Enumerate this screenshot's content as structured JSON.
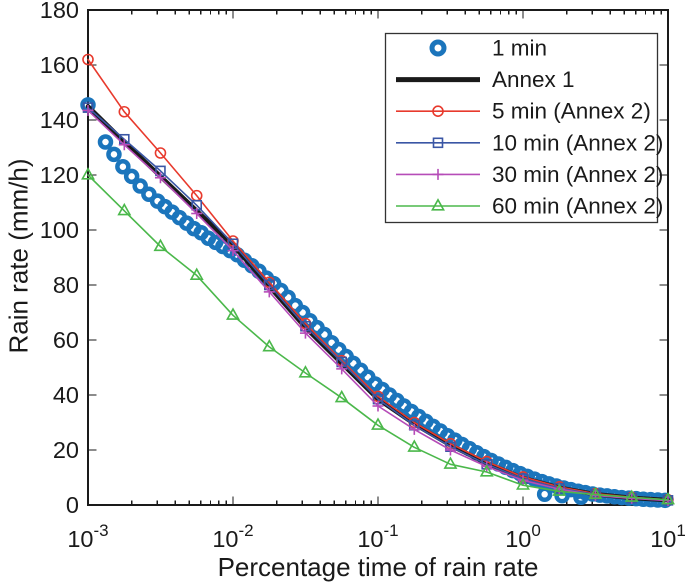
{
  "chart_data": {
    "type": "line",
    "title": "",
    "xlabel": "Percentage time of rain rate",
    "ylabel": "Rain rate (mm/h)",
    "x_scale": "log",
    "grid": false,
    "legend_position": "top-right",
    "xlim": [
      0.001,
      10
    ],
    "ylim": [
      0,
      180
    ],
    "x_ticks": [
      0.001,
      0.01,
      0.1,
      1,
      10
    ],
    "y_ticks": [
      0,
      20,
      40,
      60,
      80,
      100,
      120,
      140,
      160,
      180
    ],
    "colors": {
      "one_min_blue": "#1b75bc",
      "annex1_black": "#1a1a1a",
      "five_min_red": "#e83a2d",
      "ten_min_blue": "#3a56a5",
      "thirty_min_magenta": "#b64cb8",
      "sixty_min_green": "#4bb84b"
    },
    "series": [
      {
        "name": "1 min",
        "style": "scatter",
        "marker": "ring",
        "color": "#1b75bc",
        "marker_size": 5.5,
        "marker_stroke": 4.5,
        "x": [
          0.001,
          0.00132,
          0.00151,
          0.00174,
          0.002,
          0.00229,
          0.00263,
          0.00302,
          0.00339,
          0.0038,
          0.00427,
          0.00479,
          0.00537,
          0.00603,
          0.00676,
          0.00759,
          0.00851,
          0.00955,
          0.0107,
          0.012,
          0.0135,
          0.0151,
          0.017,
          0.0191,
          0.0214,
          0.024,
          0.0269,
          0.0302,
          0.0339,
          0.038,
          0.0427,
          0.0479,
          0.0537,
          0.0603,
          0.0676,
          0.0759,
          0.0851,
          0.0955,
          0.107,
          0.12,
          0.135,
          0.151,
          0.17,
          0.191,
          0.214,
          0.24,
          0.269,
          0.302,
          0.339,
          0.38,
          0.427,
          0.479,
          0.537,
          0.603,
          0.676,
          0.759,
          0.851,
          0.955,
          1.07,
          1.2,
          1.35,
          1.51,
          1.7,
          1.91,
          2.14,
          2.4,
          2.69,
          3.02,
          3.39,
          3.8,
          4.27,
          4.79,
          5.37,
          6.03,
          6.76,
          7.59,
          8.51,
          9.55,
          1.41,
          1.86,
          2.51
        ],
        "y": [
          145.5,
          132,
          127.5,
          123,
          119.5,
          116,
          113,
          110.5,
          108.5,
          106.5,
          104.5,
          102.5,
          100.5,
          99,
          97,
          95.5,
          94,
          92.5,
          91,
          89,
          87,
          85,
          82.5,
          80.5,
          78,
          75.5,
          72.5,
          70,
          67,
          64.5,
          62,
          59,
          56.5,
          54,
          51.5,
          49,
          46.5,
          44,
          42,
          40,
          38,
          36,
          34,
          32.2,
          30.4,
          28.6,
          26.9,
          25.2,
          23.6,
          22,
          20.5,
          19,
          17.6,
          16.2,
          14.9,
          13.7,
          12.5,
          11.4,
          10.4,
          9.4,
          8.5,
          7.7,
          6.9,
          6.2,
          5.6,
          5.0,
          4.5,
          4.0,
          3.6,
          3.3,
          3.0,
          2.7,
          2.5,
          2.3,
          2.1,
          1.95,
          1.8,
          1.7,
          3.9,
          3.4,
          2.8
        ]
      },
      {
        "name": "Annex 1",
        "style": "line",
        "marker": "none",
        "color": "#1a1a1a",
        "line_width": 4.5,
        "x": [
          0.001,
          0.00178,
          0.00316,
          0.00562,
          0.01,
          0.0178,
          0.0316,
          0.0562,
          0.1,
          0.178,
          0.316,
          0.562,
          1,
          1.78,
          3.16,
          5.62,
          10
        ],
        "y": [
          145,
          132,
          119.5,
          107,
          94.5,
          79.5,
          64.5,
          51.5,
          38.5,
          29.5,
          21.7,
          15.2,
          9.8,
          6.3,
          3.9,
          2.6,
          1.8
        ]
      },
      {
        "name": "5 min (Annex 2)",
        "style": "line+marker",
        "marker": "circle",
        "color": "#e83a2d",
        "line_width": 1.6,
        "x": [
          0.001,
          0.00178,
          0.00316,
          0.00562,
          0.01,
          0.0178,
          0.0316,
          0.0562,
          0.1,
          0.178,
          0.316,
          0.562,
          1,
          1.78,
          3.16,
          5.62,
          10
        ],
        "y": [
          162,
          143,
          128,
          112.5,
          96,
          81,
          66,
          52.5,
          39.5,
          30,
          22.3,
          15.8,
          10.2,
          6.6,
          4.1,
          2.8,
          1.9
        ]
      },
      {
        "name": "10 min (Annex 2)",
        "style": "line+marker",
        "marker": "square",
        "color": "#3a56a5",
        "line_width": 1.6,
        "x": [
          0.001,
          0.00178,
          0.00316,
          0.00562,
          0.01,
          0.0178,
          0.0316,
          0.0562,
          0.1,
          0.178,
          0.316,
          0.562,
          1,
          1.78,
          3.16,
          5.62,
          10
        ],
        "y": [
          144.5,
          133,
          121.5,
          109,
          95,
          80,
          65,
          52,
          38.5,
          29,
          21.2,
          14.8,
          9.6,
          6.1,
          3.8,
          2.5,
          1.7
        ]
      },
      {
        "name": "30 min (Annex 2)",
        "style": "line+marker",
        "marker": "plus",
        "color": "#b64cb8",
        "line_width": 1.6,
        "x": [
          0.001,
          0.00178,
          0.00316,
          0.00562,
          0.01,
          0.0178,
          0.0316,
          0.0562,
          0.1,
          0.178,
          0.316,
          0.562,
          1,
          1.78,
          3.16,
          5.62,
          10
        ],
        "y": [
          143.5,
          131,
          119,
          106,
          92.5,
          77.5,
          62.5,
          49.5,
          36,
          27.5,
          20,
          14,
          9,
          5.8,
          3.5,
          2.4,
          1.6
        ]
      },
      {
        "name": "60 min (Annex 2)",
        "style": "line+marker",
        "marker": "triangle",
        "color": "#4bb84b",
        "line_width": 1.6,
        "x": [
          0.001,
          0.00178,
          0.00316,
          0.00562,
          0.01,
          0.0178,
          0.0316,
          0.0562,
          0.1,
          0.178,
          0.316,
          0.562,
          1,
          1.78,
          3.16,
          5.62,
          10
        ],
        "y": [
          120,
          107,
          94,
          83.5,
          69,
          57.5,
          48,
          39,
          29,
          21,
          14.8,
          12,
          7.2,
          5,
          3.8,
          2.8,
          1.9
        ]
      }
    ],
    "legend_labels": [
      "1 min",
      "Annex 1",
      "5 min (Annex 2)",
      "10 min (Annex 2)",
      "30 min (Annex 2)",
      "60 min (Annex 2)"
    ]
  }
}
